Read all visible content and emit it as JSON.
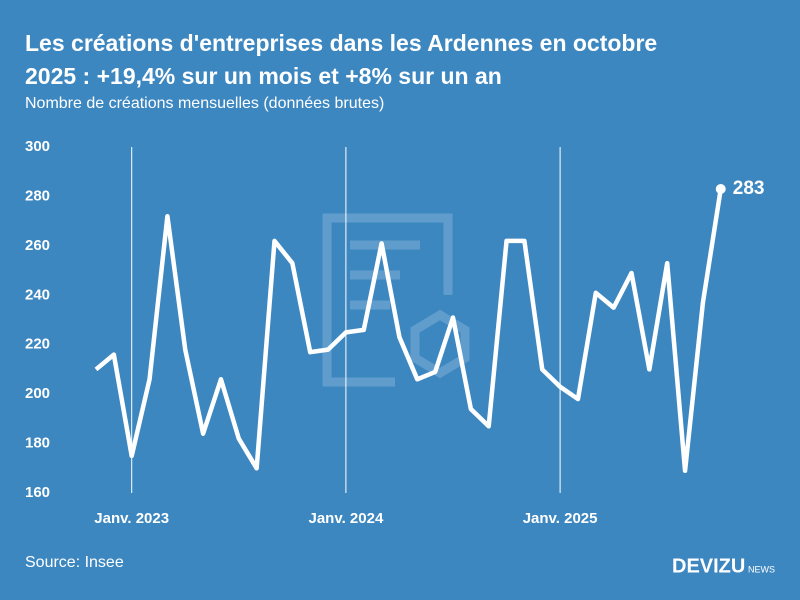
{
  "chart_data": {
    "type": "line",
    "title": "Les créations d'entreprises dans les Ardennes en octobre",
    "title_line2": "2025 : +19,4% sur un mois et +8% sur un an",
    "subtitle": "Nombre de créations mensuelles (données brutes)",
    "source": "Source: Insee",
    "brand": "DEVIZU",
    "brand_suffix": "NEWS",
    "categories": [
      null,
      null,
      "Janv. 2023",
      null,
      null,
      null,
      null,
      null,
      null,
      null,
      null,
      null,
      null,
      null,
      "Janv. 2024",
      null,
      null,
      null,
      null,
      null,
      null,
      null,
      null,
      null,
      null,
      null,
      "Janv. 2025",
      null,
      null,
      null,
      null,
      null,
      null,
      null,
      null,
      null
    ],
    "series": [
      {
        "name": "Créations",
        "color": "#ffffff",
        "values": [
          210,
          216,
          175,
          206,
          272,
          218,
          184,
          206,
          182,
          170,
          262,
          253,
          217,
          218,
          225,
          226,
          261,
          223,
          206,
          209,
          231,
          194,
          187,
          262,
          262,
          210,
          203,
          198,
          241,
          235,
          249,
          210,
          253,
          169,
          237,
          283
        ]
      }
    ],
    "last_label": true,
    "ylim": [
      160,
      300
    ],
    "yticks": [
      160,
      180,
      200,
      220,
      240,
      260,
      280,
      300
    ]
  }
}
